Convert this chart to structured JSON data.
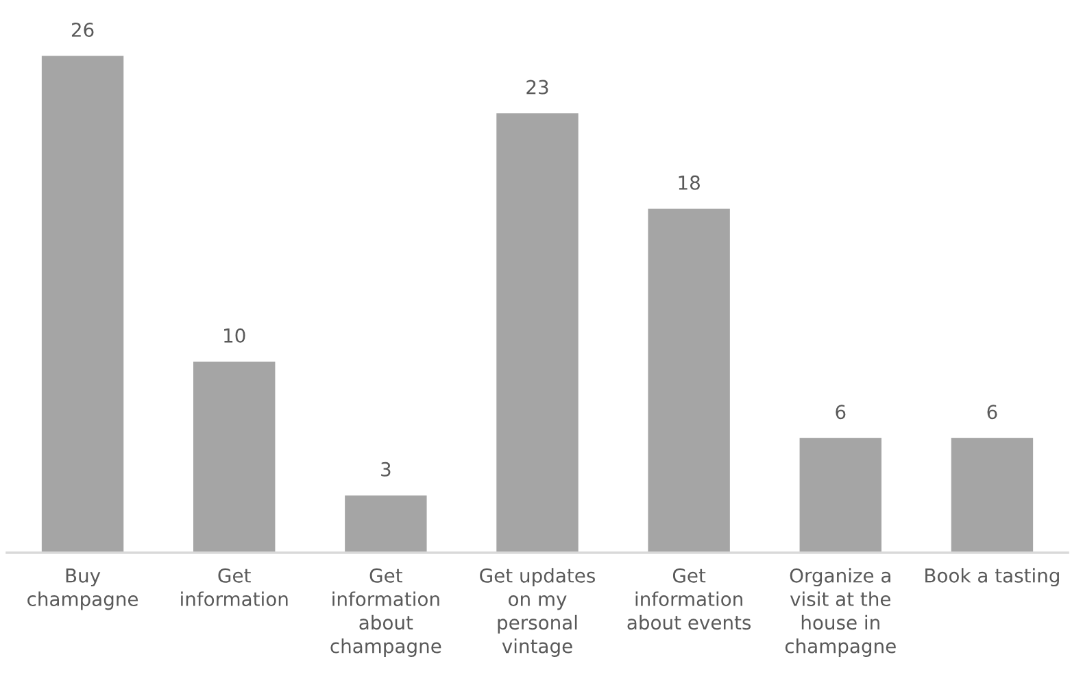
{
  "chart_data": {
    "type": "bar",
    "categories": [
      "Buy champagne",
      "Get information",
      "Get information about champagne",
      "Get updates on my personal vintage",
      "Get information about events",
      "Organize a visit at the house in champagne",
      "Book a tasting"
    ],
    "values": [
      26,
      10,
      3,
      23,
      18,
      6,
      6
    ],
    "color": "#a5a5a5",
    "data_labels": true,
    "grid": false,
    "legend": false
  }
}
